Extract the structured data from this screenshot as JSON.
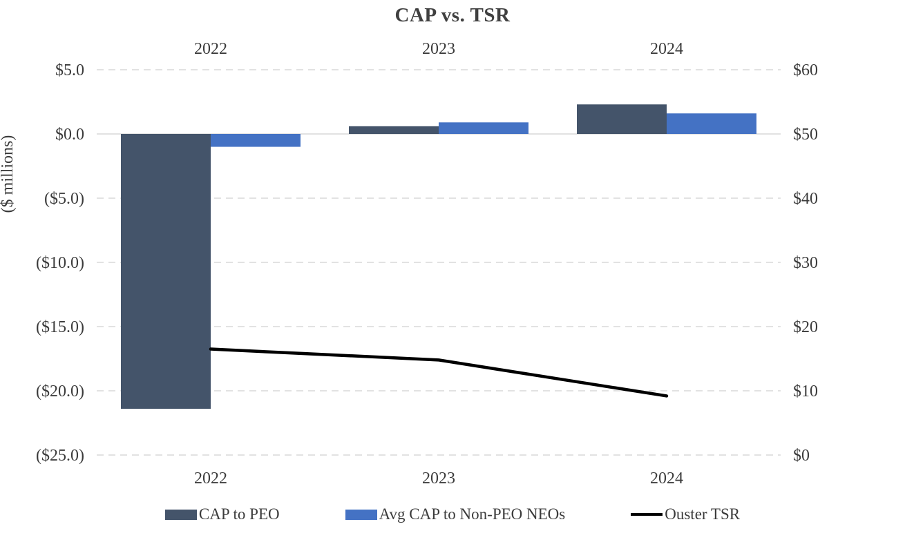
{
  "chart_data": {
    "type": "bar",
    "subtype": "combo-bar-line",
    "title": "CAP vs. TSR",
    "categories": [
      "2022",
      "2023",
      "2024"
    ],
    "bar_series": [
      {
        "name": "CAP to PEO",
        "color": "#44546A",
        "axis": "left",
        "values": [
          -21.4,
          0.6,
          2.3
        ]
      },
      {
        "name": "Avg CAP to Non-PEO NEOs",
        "color": "#4472C4",
        "axis": "left",
        "values": [
          -1.0,
          0.9,
          1.6
        ]
      }
    ],
    "line_series": [
      {
        "name": "Ouster TSR",
        "color": "#000000",
        "axis": "right",
        "values": [
          16.5,
          14.8,
          9.2
        ]
      }
    ],
    "left_axis": {
      "title": "($ millions)",
      "min": -25,
      "max": 5,
      "tick_step": 5,
      "tick_labels": [
        "$5.0",
        "$0.0",
        "($5.0)",
        "($10.0)",
        "($15.0)",
        "($20.0)",
        "($25.0)"
      ]
    },
    "right_axis": {
      "min": 0,
      "max": 60,
      "tick_step": 10,
      "tick_labels": [
        "$60",
        "$50",
        "$40",
        "$30",
        "$20",
        "$10",
        "$0"
      ]
    },
    "x_axis": {
      "top_labels": [
        "2022",
        "2023",
        "2024"
      ],
      "bottom_labels": [
        "2022",
        "2023",
        "2024"
      ]
    },
    "grid": {
      "horizontal": true,
      "style": "dashed",
      "color": "#d9d9d9"
    },
    "legend_position": "bottom",
    "background": "#ffffff",
    "text_color": "#3b3b3b"
  }
}
